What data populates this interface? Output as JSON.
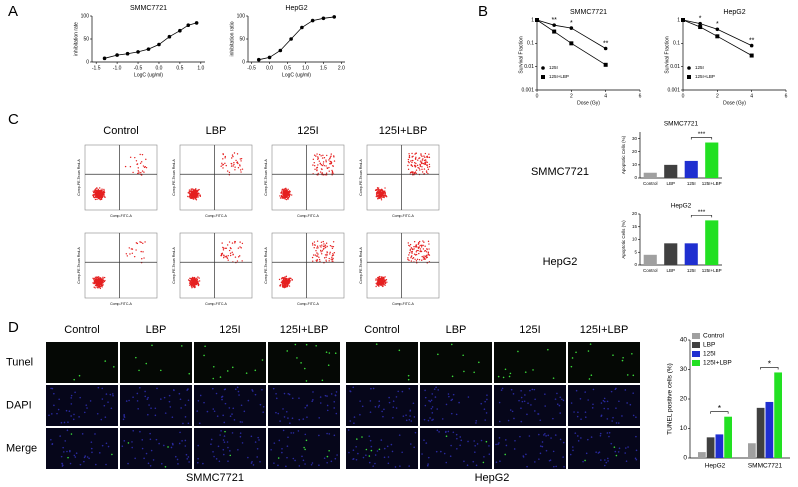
{
  "figure": {
    "panels": [
      "A",
      "B",
      "C",
      "D"
    ],
    "flow": {
      "columns": [
        "Control",
        "LBP",
        "125I",
        "125I+LBP"
      ],
      "rows": [
        "SMMC7721",
        "HepG2"
      ],
      "xlabel": "Comp-FITC-A",
      "ylabel": "Comp-PE-Texas Red-A"
    },
    "tunel": {
      "columns": [
        "Control",
        "LBP",
        "125I",
        "125I+LBP"
      ],
      "rows": [
        "Tunel",
        "DAPI",
        "Merge"
      ],
      "groups": [
        "SMMC7721",
        "HepG2"
      ]
    }
  },
  "chart_data": [
    {
      "type": "line",
      "title": "SMMC7721",
      "xlabel": "LogC (ug/ml)",
      "ylabel": "inhibitation rate",
      "x": [
        -1.3,
        -1.0,
        -0.75,
        -0.5,
        -0.25,
        0,
        0.25,
        0.5,
        0.7,
        0.9
      ],
      "values": [
        8,
        15,
        18,
        22,
        28,
        38,
        55,
        68,
        80,
        85
      ],
      "color": "#000000",
      "xlim": [
        -1.6,
        1.1
      ],
      "xticks": [
        -1.5,
        {
          "value": -1,
          "label": "-1.0"
        },
        -0.5,
        {
          "value": 0,
          "label": "0.0"
        },
        0.5,
        {
          "value": 1,
          "label": "1.0"
        }
      ],
      "ylim": [
        0,
        100
      ],
      "yticks": [
        0,
        50,
        100
      ]
    },
    {
      "type": "line",
      "title": "HepG2",
      "xlabel": "LogC (ug/ml)",
      "ylabel": "inhibitation ratio",
      "x": [
        -0.3,
        0,
        0.3,
        0.6,
        0.9,
        1.2,
        1.5,
        1.8
      ],
      "values": [
        5,
        10,
        25,
        50,
        75,
        90,
        95,
        98
      ],
      "color": "#000000",
      "xlim": [
        -0.6,
        2.1
      ],
      "xticks": [
        -0.5,
        {
          "value": 0,
          "label": "0.0"
        },
        0.5,
        {
          "value": 1,
          "label": "1.0"
        },
        1.5,
        {
          "value": 2,
          "label": "2.0"
        }
      ],
      "ylim": [
        0,
        100
      ],
      "yticks": [
        0,
        50,
        100
      ]
    },
    {
      "type": "line",
      "log_y": true,
      "title": "SMMC7721",
      "xlabel": "Dose (Gy)",
      "ylabel": "Survival Fraction",
      "x": [
        0,
        1,
        2,
        4
      ],
      "series": [
        {
          "name": "125I",
          "marker": "circle",
          "color": "#000000",
          "values": [
            1,
            0.6,
            0.45,
            0.06
          ]
        },
        {
          "name": "125I+LBP",
          "marker": "square",
          "color": "#000000",
          "values": [
            1,
            0.32,
            0.1,
            0.012
          ]
        }
      ],
      "xlim": [
        0,
        6
      ],
      "xticks": [
        0,
        2,
        4,
        6
      ],
      "ylim": [
        0.001,
        1
      ],
      "yticks": [
        0.001,
        0.01,
        0.1,
        1
      ],
      "legend": "lower left",
      "annotations": [
        {
          "x": 1,
          "text": "**"
        },
        {
          "x": 2,
          "text": "*"
        },
        {
          "x": 4,
          "text": "**"
        }
      ]
    },
    {
      "type": "line",
      "log_y": true,
      "title": "HepG2",
      "xlabel": "Dose (Gy)",
      "ylabel": "Survival Fraction",
      "x": [
        0,
        1,
        2,
        4
      ],
      "series": [
        {
          "name": "125I",
          "marker": "circle",
          "color": "#000000",
          "values": [
            1,
            0.7,
            0.4,
            0.08
          ]
        },
        {
          "name": "125I+LBP",
          "marker": "square",
          "color": "#000000",
          "values": [
            1,
            0.5,
            0.2,
            0.03
          ]
        }
      ],
      "xlim": [
        0,
        6
      ],
      "xticks": [
        0,
        2,
        4,
        6
      ],
      "ylim": [
        0.001,
        1
      ],
      "yticks": [
        0.001,
        0.01,
        0.1,
        1
      ],
      "legend": "lower left",
      "annotations": [
        {
          "x": 1,
          "text": "*"
        },
        {
          "x": 2,
          "text": "*"
        },
        {
          "x": 4,
          "text": "**"
        }
      ]
    },
    {
      "type": "bar",
      "title": "SMMC7721",
      "ylabel": "Apoptotic Cells (%)",
      "categories": [
        "Control",
        "LBP",
        "125I",
        "125I+LBP"
      ],
      "values": [
        4,
        10,
        13,
        27
      ],
      "colors": [
        "#a0a0a0",
        "#404040",
        "#1f2fd0",
        "#22e022"
      ],
      "ylim": [
        0,
        35
      ],
      "yticks": [
        0,
        10,
        20,
        30
      ],
      "annotation": "***"
    },
    {
      "type": "bar",
      "title": "HepG2",
      "ylabel": "Apoptotic Cells (%)",
      "categories": [
        "Control",
        "LBP",
        "125I",
        "125I+LBP"
      ],
      "values": [
        4,
        8.5,
        8.5,
        17.5
      ],
      "colors": [
        "#a0a0a0",
        "#404040",
        "#1f2fd0",
        "#22e022"
      ],
      "ylim": [
        0,
        20
      ],
      "yticks": [
        0,
        5,
        10,
        15,
        20
      ],
      "annotation": "***"
    },
    {
      "type": "grouped_bar",
      "ylabel": "TUNEL positive cells (%)",
      "categories": [
        "HepG2",
        "SMMC7721"
      ],
      "series": [
        {
          "name": "Control",
          "color": "#a0a0a0",
          "values": [
            2,
            5
          ]
        },
        {
          "name": "LBP",
          "color": "#404040",
          "values": [
            7,
            17
          ]
        },
        {
          "name": "125I",
          "color": "#1f2fd0",
          "values": [
            8,
            19
          ]
        },
        {
          "name": "125I+LBP",
          "color": "#22e022",
          "values": [
            14,
            29
          ]
        }
      ],
      "ylim": [
        0,
        40
      ],
      "yticks": [
        0,
        10,
        20,
        30,
        40
      ],
      "legend": "upper left",
      "annotations": [
        "*",
        "*"
      ]
    }
  ]
}
